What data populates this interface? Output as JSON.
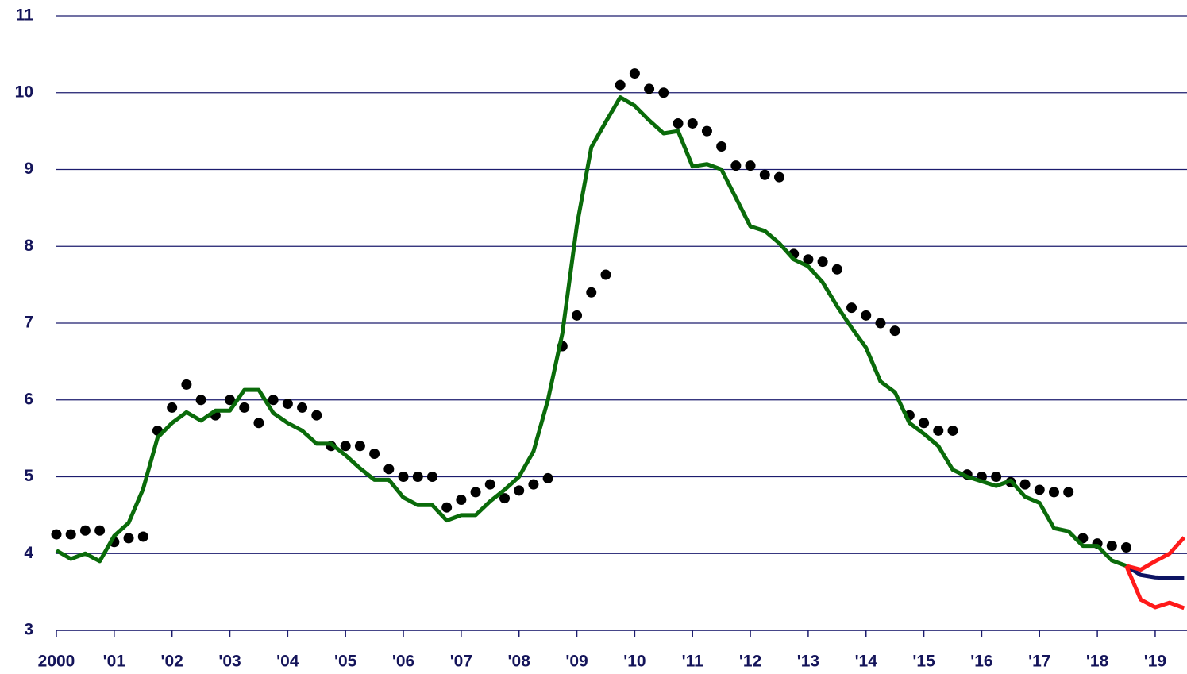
{
  "chart_data": {
    "type": "line",
    "xlim": [
      2000,
      2019.55
    ],
    "ylim": [
      3,
      11
    ],
    "yticks": [
      3,
      4,
      5,
      6,
      7,
      8,
      9,
      10,
      11
    ],
    "xticks": [
      2000,
      {
        "value": 2001,
        "label": "'01"
      },
      {
        "value": 2002,
        "label": "'02"
      },
      {
        "value": 2003,
        "label": "'03"
      },
      {
        "value": 2004,
        "label": "'04"
      },
      {
        "value": 2005,
        "label": "'05"
      },
      {
        "value": 2006,
        "label": "'06"
      },
      {
        "value": 2007,
        "label": "'07"
      },
      {
        "value": 2008,
        "label": "'08"
      },
      {
        "value": 2009,
        "label": "'09"
      },
      {
        "value": 2010,
        "label": "'10"
      },
      {
        "value": 2011,
        "label": "'11"
      },
      {
        "value": 2012,
        "label": "'12"
      },
      {
        "value": 2013,
        "label": "'13"
      },
      {
        "value": 2014,
        "label": "'14"
      },
      {
        "value": 2015,
        "label": "'15"
      },
      {
        "value": 2016,
        "label": "'16"
      },
      {
        "value": 2017,
        "label": "'17"
      },
      {
        "value": 2018,
        "label": "'18"
      },
      {
        "value": 2019,
        "label": "'19"
      }
    ],
    "grid": true,
    "series": [
      {
        "color": "#000000",
        "marker": "dot",
        "x": [
          2000,
          2000.25,
          2000.5,
          2000.75,
          2001,
          2001.25,
          2001.5,
          2001.75,
          2002,
          2002.25,
          2002.5,
          2002.75,
          2003,
          2003.25,
          2003.5,
          2003.75,
          2004,
          2004.25,
          2004.5,
          2004.75,
          2005,
          2005.25,
          2005.5,
          2005.75,
          2006,
          2006.25,
          2006.5,
          2006.75,
          2007,
          2007.25,
          2007.5,
          2007.75,
          2008,
          2008.25,
          2008.5,
          2008.75,
          2009,
          2009.25,
          2009.5,
          2009.75,
          2010,
          2010.25,
          2010.5,
          2010.75,
          2011,
          2011.25,
          2011.5,
          2011.75,
          2012,
          2012.25,
          2012.5,
          2012.75,
          2013,
          2013.25,
          2013.5,
          2013.75,
          2014,
          2014.25,
          2014.5,
          2014.75,
          2015,
          2015.25,
          2015.5,
          2015.75,
          2016,
          2016.25,
          2016.5,
          2016.75,
          2017,
          2017.25,
          2017.5,
          2017.75,
          2018,
          2018.25,
          2018.5
        ],
        "values": [
          4.25,
          4.25,
          4.3,
          4.3,
          4.15,
          4.2,
          4.22,
          5.6,
          5.9,
          6.2,
          6.0,
          5.8,
          6.0,
          5.9,
          5.7,
          6.0,
          5.95,
          5.9,
          5.8,
          5.4,
          5.4,
          5.4,
          5.3,
          5.1,
          5.0,
          5.0,
          5.0,
          4.6,
          4.7,
          4.8,
          4.9,
          4.72,
          4.82,
          4.9,
          4.98,
          6.7,
          7.1,
          7.4,
          7.63,
          10.1,
          10.25,
          10.05,
          10.0,
          9.6,
          9.6,
          9.5,
          9.3,
          9.05,
          9.05,
          8.93,
          8.9,
          7.9,
          7.83,
          7.8,
          7.7,
          7.2,
          7.1,
          7.0,
          6.9,
          5.8,
          5.7,
          5.6,
          5.6,
          5.03,
          5.0,
          5.0,
          4.93,
          4.9,
          4.83,
          4.8,
          4.8,
          4.2,
          4.13,
          4.1,
          4.08
        ]
      },
      {
        "color": "#0a6b0a",
        "marker": "line",
        "x": [
          2000,
          2000.25,
          2000.5,
          2000.75,
          2001,
          2001.25,
          2001.5,
          2001.75,
          2002,
          2002.25,
          2002.5,
          2002.75,
          2003,
          2003.25,
          2003.5,
          2003.75,
          2004,
          2004.25,
          2004.5,
          2004.75,
          2005,
          2005.25,
          2005.5,
          2005.75,
          2006,
          2006.25,
          2006.5,
          2006.75,
          2007,
          2007.25,
          2007.5,
          2007.75,
          2008,
          2008.25,
          2008.5,
          2008.75,
          2009,
          2009.25,
          2009.5,
          2009.75,
          2010,
          2010.25,
          2010.5,
          2010.75,
          2011,
          2011.25,
          2011.5,
          2011.75,
          2012,
          2012.25,
          2012.5,
          2012.75,
          2013,
          2013.25,
          2013.5,
          2013.75,
          2014,
          2014.25,
          2014.5,
          2014.75,
          2015,
          2015.25,
          2015.5,
          2015.75,
          2016,
          2016.25,
          2016.5,
          2016.75,
          2017,
          2017.25,
          2017.5,
          2017.75,
          2018,
          2018.25,
          2018.5
        ],
        "values": [
          4.04,
          3.93,
          4.0,
          3.9,
          4.23,
          4.4,
          4.84,
          5.51,
          5.7,
          5.84,
          5.73,
          5.86,
          5.86,
          6.13,
          6.13,
          5.83,
          5.7,
          5.6,
          5.43,
          5.43,
          5.28,
          5.11,
          4.96,
          4.96,
          4.73,
          4.63,
          4.63,
          4.43,
          4.5,
          4.5,
          4.68,
          4.83,
          5.0,
          5.33,
          6.0,
          6.87,
          8.27,
          9.29,
          9.62,
          9.94,
          9.83,
          9.64,
          9.47,
          9.5,
          9.04,
          9.07,
          9.0,
          8.63,
          8.26,
          8.2,
          8.04,
          7.83,
          7.74,
          7.53,
          7.22,
          6.94,
          6.68,
          6.24,
          6.1,
          5.7,
          5.56,
          5.4,
          5.09,
          5.0,
          4.94,
          4.88,
          4.95,
          4.74,
          4.66,
          4.33,
          4.29,
          4.1,
          4.1,
          3.91,
          3.84
        ]
      },
      {
        "color": "#0d1463",
        "marker": "line",
        "x": [
          2018.5,
          2018.75,
          2019,
          2019.25,
          2019.5
        ],
        "values": [
          3.84,
          3.72,
          3.69,
          3.68,
          3.68
        ]
      },
      {
        "color": "#ff1a1a",
        "marker": "line",
        "x": [
          2018.5,
          2018.75,
          2019,
          2019.25,
          2019.5
        ],
        "values": [
          3.84,
          3.79,
          3.9,
          4.0,
          4.21
        ]
      },
      {
        "color": "#ff1a1a",
        "marker": "line",
        "x": [
          2018.5,
          2018.75,
          2019,
          2019.25,
          2019.5
        ],
        "values": [
          3.84,
          3.4,
          3.3,
          3.36,
          3.29
        ]
      }
    ]
  }
}
